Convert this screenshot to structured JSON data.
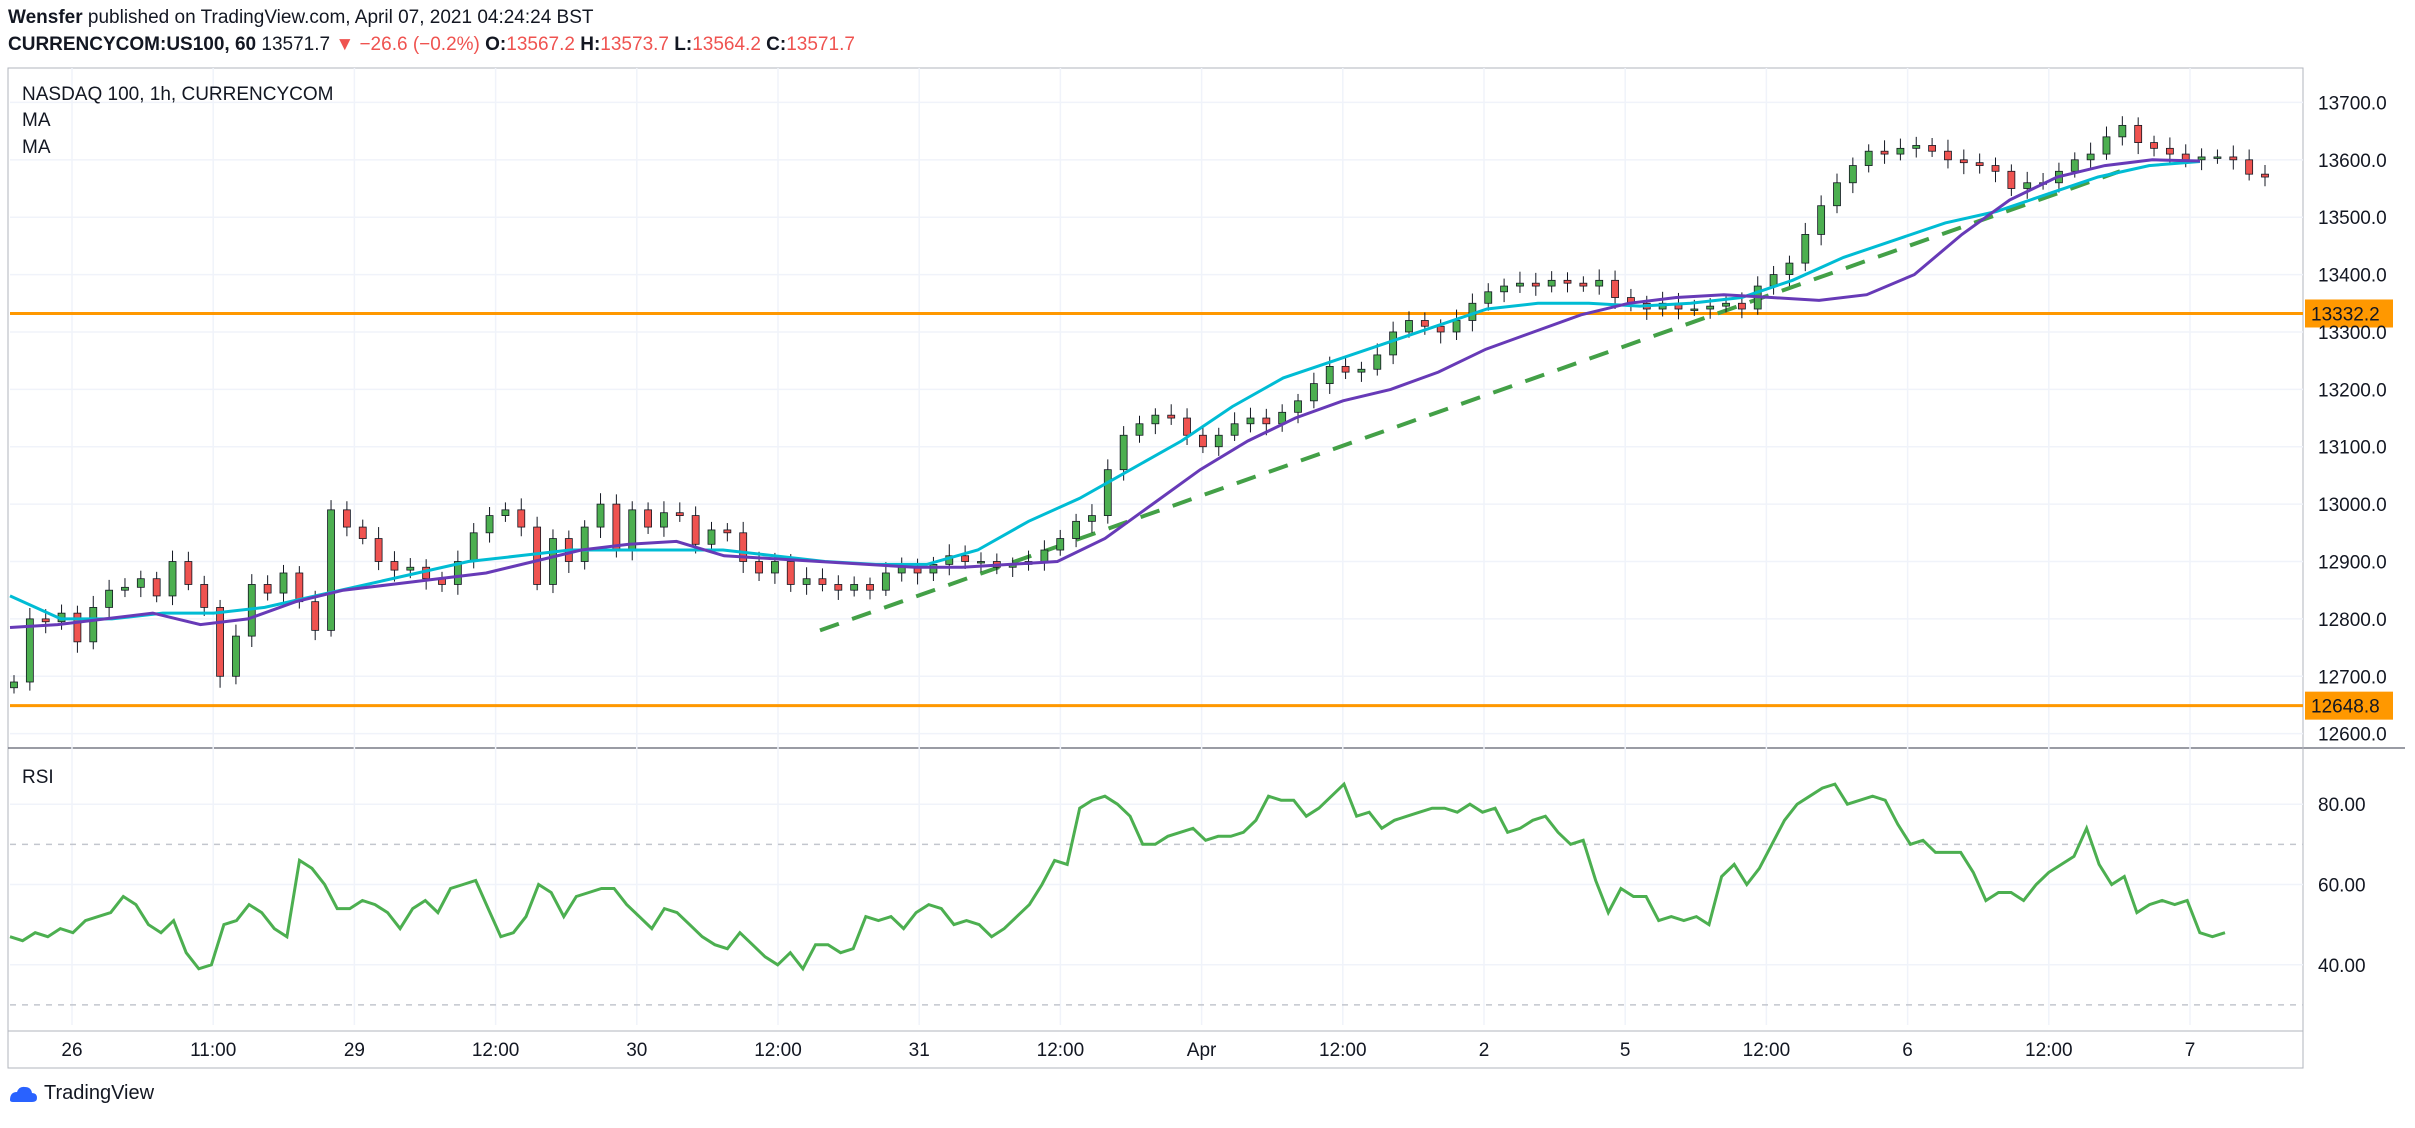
{
  "header": {
    "publisher": "Wensfer",
    "published_text": "published on TradingView.com, April 07, 2021 04:24:24 BST",
    "symbol": "CURRENCYCOM:US100, 60",
    "last": "13571.7",
    "change": "▼ −26.6 (−0.2%)",
    "o_label": "O:",
    "o": "13567.2",
    "h_label": "H:",
    "h": "13573.7",
    "l_label": "L:",
    "l": "13564.2",
    "c_label": "C:",
    "c": "13571.7"
  },
  "legend": {
    "title": "NASDAQ 100, 1h, CURRENCYCOM",
    "ma1": "MA",
    "ma2": "MA",
    "rsi": "RSI"
  },
  "footer": {
    "brand": "TradingView"
  },
  "colors": {
    "up": "#4caf50",
    "up_fill": "#26a69a",
    "down": "#ef5350",
    "ma_fast": "#673ab7",
    "ma_slow": "#00bcd4",
    "level": "#ff9800",
    "trend": "#43a047",
    "rsi": "#4caf50",
    "grid": "#f0f3fa"
  },
  "chart_data": [
    {
      "type": "candlestick",
      "title": "NASDAQ 100, 1h, CURRENCYCOM",
      "ylim": [
        12575,
        13760
      ],
      "y_ticks": [
        12600,
        12700,
        12800,
        12900,
        13000,
        13100,
        13200,
        13300,
        13400,
        13500,
        13600,
        13700
      ],
      "x_labels": [
        "26",
        "11:00",
        "29",
        "12:00",
        "30",
        "12:00",
        "31",
        "12:00",
        "Apr",
        "12:00",
        "2",
        "5",
        "12:00",
        "6",
        "12:00",
        "7"
      ],
      "horizontal_levels": [
        12648.8,
        13332.2
      ],
      "trendline_dashed": [
        [
          12780,
          12895
        ],
        [
          12895,
          13580
        ]
      ],
      "ohlc_path": [
        12690,
        12800,
        12795,
        12810,
        12760,
        12820,
        12850,
        12855,
        12870,
        12840,
        12900,
        12860,
        12820,
        12700,
        12770,
        12860,
        12845,
        12880,
        12830,
        12780,
        12990,
        12960,
        12940,
        12900,
        12885,
        12890,
        12870,
        12860,
        12900,
        12950,
        12980,
        12990,
        12960,
        12860,
        12940,
        12900,
        12960,
        13000,
        12920,
        12990,
        12960,
        12985,
        12980,
        12930,
        12955,
        12950,
        12900,
        12880,
        12900,
        12860,
        12870,
        12860,
        12850,
        12860,
        12850,
        12880,
        12890,
        12880,
        12895,
        12910,
        12900,
        12900,
        12890,
        12895,
        12900,
        12920,
        12940,
        12970,
        12980,
        13060,
        13120,
        13140,
        13155,
        13150,
        13120,
        13100,
        13120,
        13140,
        13150,
        13140,
        13160,
        13180,
        13210,
        13240,
        13230,
        13235,
        13260,
        13300,
        13320,
        13310,
        13300,
        13320,
        13350,
        13370,
        13380,
        13385,
        13380,
        13390,
        13385,
        13380,
        13390,
        13360,
        13350,
        13340,
        13350,
        13340,
        13340,
        13345,
        13350,
        13340,
        13380,
        13400,
        13420,
        13470,
        13520,
        13560,
        13590,
        13615,
        13610,
        13620,
        13625,
        13615,
        13600,
        13595,
        13590,
        13580,
        13550,
        13560,
        13560,
        13580,
        13600,
        13610,
        13640,
        13660,
        13630,
        13620,
        13610,
        13600,
        13605,
        13605,
        13600,
        13575,
        13570
      ],
      "ma_fast_path": [
        12785,
        12790,
        12800,
        12810,
        12790,
        12800,
        12830,
        12850,
        12860,
        12870,
        12880,
        12900,
        12920,
        12930,
        12935,
        12910,
        12905,
        12900,
        12895,
        12890,
        12890,
        12895,
        12900,
        12940,
        13000,
        13060,
        13110,
        13150,
        13180,
        13200,
        13230,
        13270,
        13300,
        13330,
        13350,
        13360,
        13365,
        13360,
        13355,
        13365,
        13400,
        13470,
        13530,
        13570,
        13590,
        13600,
        13598
      ],
      "ma_slow_path": [
        12840,
        12800,
        12800,
        12810,
        12810,
        12820,
        12840,
        12860,
        12880,
        12900,
        12910,
        12920,
        12920,
        12920,
        12920,
        12910,
        12900,
        12895,
        12895,
        12920,
        12970,
        13010,
        13060,
        13110,
        13170,
        13220,
        13250,
        13280,
        13310,
        13340,
        13350,
        13350,
        13345,
        13350,
        13360,
        13390,
        13430,
        13460,
        13490,
        13510,
        13540,
        13570,
        13590,
        13597
      ]
    },
    {
      "type": "line",
      "title": "RSI",
      "series": [
        {
          "values": [
            47,
            46,
            48,
            47,
            49,
            48,
            51,
            52,
            53,
            57,
            55,
            50,
            48,
            51,
            43,
            39,
            40,
            50,
            51,
            55,
            53,
            49,
            47,
            66,
            64,
            60,
            54,
            54,
            56,
            55,
            53,
            49,
            54,
            56,
            53,
            59,
            60,
            61,
            54,
            47,
            48,
            52,
            60,
            58,
            52,
            57,
            58,
            59,
            59,
            55,
            52,
            49,
            54,
            53,
            50,
            47,
            45,
            44,
            48,
            45,
            42,
            40,
            43,
            39,
            45,
            45,
            43,
            44,
            52,
            51,
            52,
            49,
            53,
            55,
            54,
            50,
            51,
            50,
            47,
            49,
            52,
            55,
            60,
            66,
            65,
            79,
            81,
            82,
            80,
            77,
            70,
            70,
            72,
            73,
            74,
            71,
            72,
            72,
            73,
            76,
            82,
            81,
            81,
            77,
            79,
            82,
            85,
            77,
            78,
            74,
            76,
            77,
            78,
            79,
            79,
            78,
            80,
            78,
            79,
            73,
            74,
            76,
            77,
            73,
            70,
            71,
            61,
            53,
            59,
            57,
            57,
            51,
            52,
            51,
            52,
            50,
            62,
            65,
            60,
            64,
            70,
            76,
            80,
            82,
            84,
            85,
            80,
            81,
            82,
            81,
            75,
            70,
            71,
            68,
            68,
            68,
            63,
            56,
            58,
            58,
            56,
            60,
            63,
            65,
            67,
            74,
            65,
            60,
            62,
            53,
            55,
            56,
            55,
            56,
            48,
            47,
            48
          ]
        }
      ],
      "ylim": [
        25,
        93
      ],
      "y_ticks": [
        40,
        60,
        80
      ],
      "dashed_levels": [
        30,
        70
      ]
    }
  ]
}
